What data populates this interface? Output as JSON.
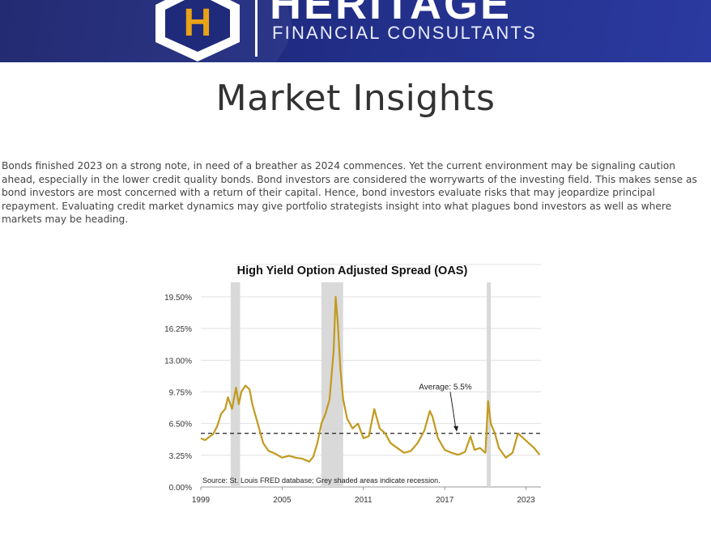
{
  "header": {
    "logo_letter": "H",
    "brand_name": "HERITAGE",
    "brand_subtitle": "FINANCIAL CONSULTANTS",
    "colors": {
      "banner": "#1f2a7a",
      "logo_gold": "#e8a317"
    }
  },
  "page": {
    "title": "Market Insights",
    "intro": "Bonds finished 2023 on a strong note, in need of a breather as 2024 commences. Yet the current environment may be signaling caution ahead, especially in the lower credit quality bonds. Bond investors are considered the worrywarts of the investing field. This makes sense as bond investors are most concerned with a return of their capital. Hence, bond investors evaluate risks that may jeopardize principal repayment. Evaluating credit market dynamics may give portfolio strategists insight into what plagues bond investors as well as where markets may be heading."
  },
  "chart_data": {
    "type": "line",
    "title": "High Yield Option Adjusted Spread (OAS)",
    "xlabel": "",
    "ylabel": "",
    "xlim": [
      1999,
      2024.1
    ],
    "ylim": [
      0,
      19.5
    ],
    "y_ticks": [
      "0.00%",
      "3.25%",
      "6.50%",
      "9.75%",
      "13.00%",
      "16.25%",
      "19.50%"
    ],
    "y_tick_values": [
      0,
      3.25,
      6.5,
      9.75,
      13,
      16.25,
      19.5
    ],
    "x_ticks": [
      "1999",
      "2005",
      "2011",
      "2017",
      "2023"
    ],
    "x_tick_values": [
      1999,
      2005,
      2011,
      2017,
      2023
    ],
    "grid": true,
    "line_color": "#c29a1e",
    "recessions": [
      [
        2001.2,
        2001.9
      ],
      [
        2007.9,
        2009.5
      ],
      [
        2020.1,
        2020.4
      ]
    ],
    "recession_color": "#d9d9d9",
    "average": 5.5,
    "average_label": "Average: 5.5%",
    "source_note": "Source: St. Louis FRED database; Grey shaded areas indicate recession.",
    "series": [
      {
        "x": [
          1999.0,
          1999.3,
          1999.6,
          1999.9,
          2000.2,
          2000.5,
          2000.8,
          2001.0,
          2001.3,
          2001.6,
          2001.8,
          2002.0,
          2002.3,
          2002.6,
          2002.8,
          2003.0,
          2003.3,
          2003.6,
          2004.0,
          2004.5,
          2005.0,
          2005.5,
          2006.0,
          2006.5,
          2007.0,
          2007.3,
          2007.6,
          2007.9,
          2008.2,
          2008.5,
          2008.8,
          2008.95,
          2009.1,
          2009.3,
          2009.5,
          2009.8,
          2010.2,
          2010.6,
          2011.0,
          2011.4,
          2011.8,
          2012.2,
          2012.6,
          2013.0,
          2013.5,
          2014.0,
          2014.5,
          2015.0,
          2015.5,
          2015.9,
          2016.1,
          2016.5,
          2017.0,
          2017.5,
          2018.0,
          2018.5,
          2018.9,
          2019.2,
          2019.6,
          2020.0,
          2020.2,
          2020.4,
          2020.7,
          2021.0,
          2021.5,
          2022.0,
          2022.4,
          2022.8,
          2023.2,
          2023.6,
          2024.0
        ],
        "y": [
          5.0,
          4.8,
          5.1,
          5.4,
          6.2,
          7.5,
          8.0,
          9.2,
          8.0,
          10.2,
          8.5,
          9.8,
          10.4,
          10.0,
          8.5,
          7.5,
          6.0,
          4.5,
          3.7,
          3.4,
          3.0,
          3.2,
          3.0,
          2.9,
          2.6,
          3.1,
          4.5,
          6.5,
          7.5,
          9.0,
          14.0,
          19.5,
          17.0,
          12.0,
          9.0,
          7.0,
          6.0,
          6.5,
          5.0,
          5.2,
          8.0,
          6.0,
          5.5,
          4.5,
          4.0,
          3.5,
          3.7,
          4.5,
          5.8,
          7.8,
          7.2,
          5.0,
          3.8,
          3.5,
          3.3,
          3.6,
          5.2,
          3.8,
          4.0,
          3.5,
          8.8,
          6.5,
          5.5,
          4.0,
          3.0,
          3.5,
          5.5,
          5.0,
          4.5,
          4.0,
          3.3
        ]
      }
    ]
  }
}
